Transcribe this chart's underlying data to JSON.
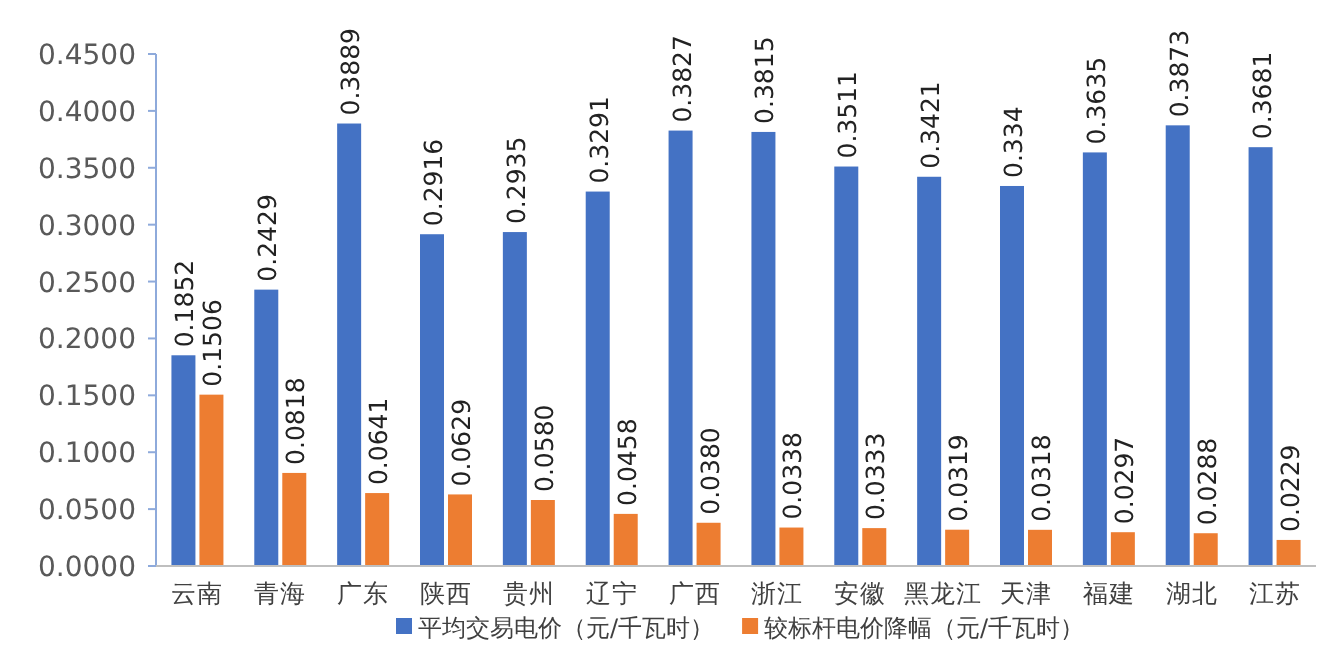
{
  "chart_data": {
    "type": "bar",
    "categories": [
      "云南",
      "青海",
      "广东",
      "陕西",
      "贵州",
      "辽宁",
      "广西",
      "浙江",
      "安徽",
      "黑龙江",
      "天津",
      "福建",
      "湖北",
      "江苏"
    ],
    "series": [
      {
        "name": "平均交易电价（元/千瓦时）",
        "color": "#4472c4",
        "values": [
          0.1852,
          0.2429,
          0.3889,
          0.2916,
          0.2935,
          0.3291,
          0.3827,
          0.3815,
          0.3511,
          0.3421,
          0.334,
          0.3635,
          0.3873,
          0.3681
        ],
        "value_labels": [
          "0.1852",
          "0.2429",
          "0.3889",
          "0.2916",
          "0.2935",
          "0.3291",
          "0.3827",
          "0.3815",
          "0.3511",
          "0.3421",
          "0.334",
          "0.3635",
          "0.3873",
          "0.3681"
        ]
      },
      {
        "name": "较标杆电价降幅（元/千瓦时）",
        "color": "#ed7d31",
        "values": [
          0.1506,
          0.0818,
          0.0641,
          0.0629,
          0.058,
          0.0458,
          0.038,
          0.0338,
          0.0333,
          0.0319,
          0.0318,
          0.0297,
          0.0288,
          0.0229
        ],
        "value_labels": [
          "0.1506",
          "0.0818",
          "0.0641",
          "0.0629",
          "0.0580",
          "0.0458",
          "0.0380",
          "0.0338",
          "0.0333",
          "0.0319",
          "0.0318",
          "0.0297",
          "0.0288",
          "0.0229"
        ]
      }
    ],
    "ylim": [
      0,
      0.45
    ],
    "yticks": [
      {
        "value": 0,
        "label": "0.0000"
      },
      {
        "value": 0.05,
        "label": "0.0500"
      },
      {
        "value": 0.1,
        "label": "0.1000"
      },
      {
        "value": 0.15,
        "label": "0.1500"
      },
      {
        "value": 0.2,
        "label": "0.2000"
      },
      {
        "value": 0.25,
        "label": "0.2500"
      },
      {
        "value": 0.3,
        "label": "0.3000"
      },
      {
        "value": 0.35,
        "label": "0.3500"
      },
      {
        "value": 0.4,
        "label": "0.4000"
      },
      {
        "value": 0.45,
        "label": "0.4500"
      }
    ],
    "legend": "bottom"
  }
}
